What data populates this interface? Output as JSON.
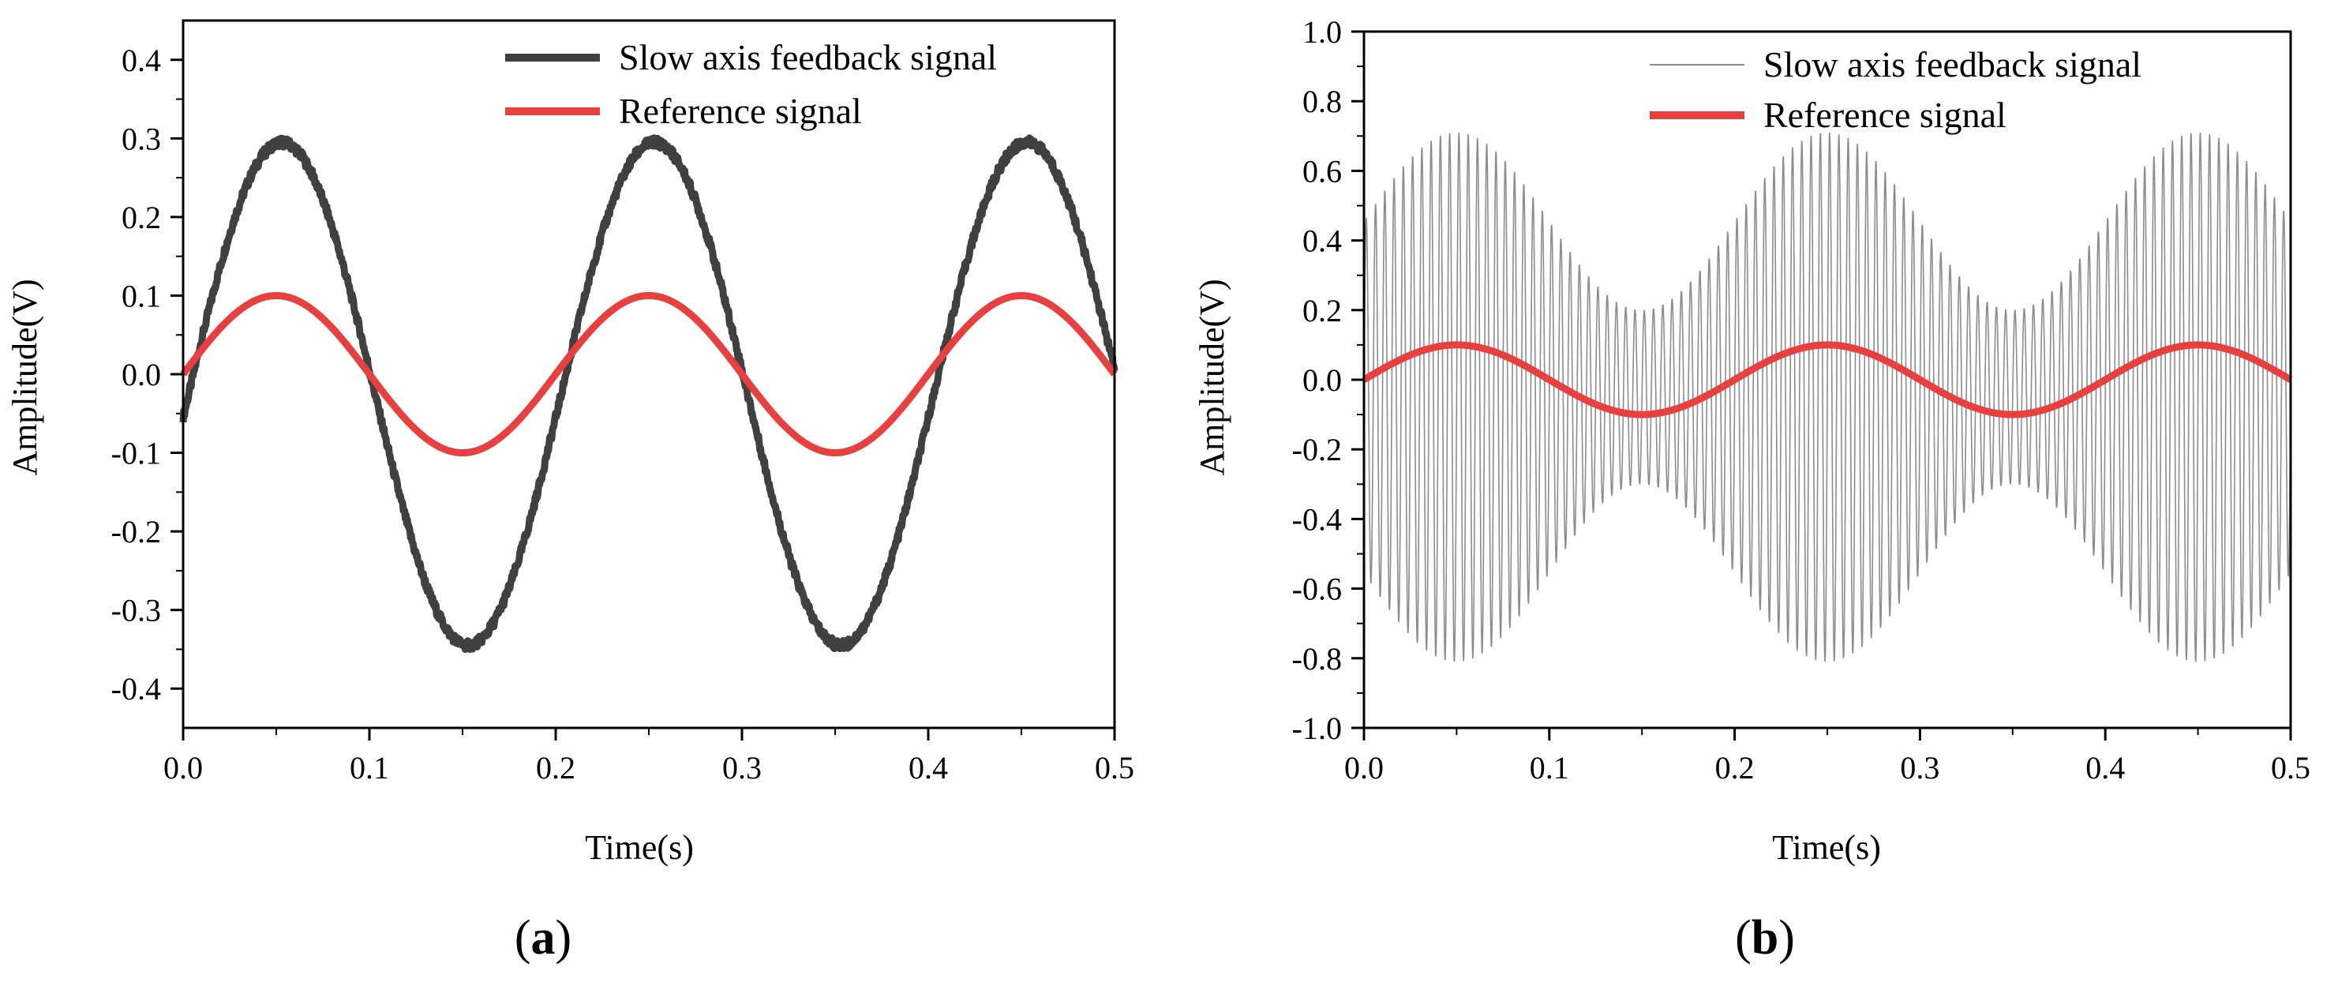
{
  "figure": {
    "panels": [
      {
        "label_open": "(",
        "label_letter": "a",
        "label_close": ")"
      },
      {
        "label_open": "(",
        "label_letter": "b",
        "label_close": ")"
      }
    ]
  },
  "colors": {
    "feedback_a": "#404040",
    "feedback_b": "#8c8c8c",
    "reference": "#e8403f",
    "axis": "#000000",
    "background": "#ffffff"
  },
  "chart_data": [
    {
      "type": "line",
      "panel": "a",
      "xlabel": "Time(s)",
      "ylabel": "Amplitude(V)",
      "xlim": [
        0.0,
        0.5
      ],
      "ylim": [
        -0.45,
        0.45
      ],
      "xticks": [
        0.0,
        0.1,
        0.2,
        0.3,
        0.4,
        0.5
      ],
      "xtick_labels": [
        "0.0",
        "0.1",
        "0.2",
        "0.3",
        "0.4",
        "0.5"
      ],
      "yticks": [
        -0.4,
        -0.3,
        -0.2,
        -0.1,
        0.0,
        0.1,
        0.2,
        0.3,
        0.4
      ],
      "ytick_labels": [
        "-0.4",
        "-0.3",
        "-0.2",
        "-0.1",
        "0.0",
        "0.1",
        "0.2",
        "0.3",
        "0.4"
      ],
      "legend_position": "top-right",
      "series": [
        {
          "name": "Slow axis feedback signal",
          "kind": "sine",
          "frequency_hz": 5,
          "amplitude": 0.32,
          "offset": -0.025,
          "phase_delay_s": 0.003,
          "noise": 0.006,
          "start_value": -0.06,
          "end_value": 0.01,
          "peak_value": 0.295,
          "trough_value": -0.345
        },
        {
          "name": "Reference signal",
          "kind": "sine",
          "frequency_hz": 5,
          "amplitude": 0.1,
          "offset": 0.0,
          "phase_delay_s": 0.0,
          "peak_value": 0.1,
          "trough_value": -0.1
        }
      ]
    },
    {
      "type": "line",
      "panel": "b",
      "xlabel": "Time(s)",
      "ylabel": "Amplitude(V)",
      "xlim": [
        0.0,
        0.5
      ],
      "ylim": [
        -1.0,
        1.0
      ],
      "xticks": [
        0.0,
        0.1,
        0.2,
        0.3,
        0.4,
        0.5
      ],
      "xtick_labels": [
        "0.0",
        "0.1",
        "0.2",
        "0.3",
        "0.4",
        "0.5"
      ],
      "yticks": [
        -1.0,
        -0.8,
        -0.6,
        -0.4,
        -0.2,
        0.0,
        0.2,
        0.4,
        0.6,
        0.8,
        1.0
      ],
      "ytick_labels": [
        "-1.0",
        "-0.8",
        "-0.6",
        "-0.4",
        "-0.2",
        "0.0",
        "0.2",
        "0.4",
        "0.6",
        "0.8",
        "1.0"
      ],
      "legend_position": "top-right",
      "series": [
        {
          "name": "Slow axis feedback signal",
          "kind": "modulated-oscillation",
          "carrier_frequency_hz": 200,
          "envelope_frequency_hz": 5,
          "offset": -0.05,
          "max_amplitude": 0.76,
          "min_amplitude": 0.25,
          "upper_envelope_range": [
            0.2,
            0.71
          ],
          "lower_envelope_range": [
            -0.3,
            -0.81
          ]
        },
        {
          "name": "Reference signal",
          "kind": "sine",
          "frequency_hz": 5,
          "amplitude": 0.1,
          "offset": 0.0,
          "phase_delay_s": 0.0,
          "peak_value": 0.1,
          "trough_value": -0.1
        }
      ]
    }
  ]
}
